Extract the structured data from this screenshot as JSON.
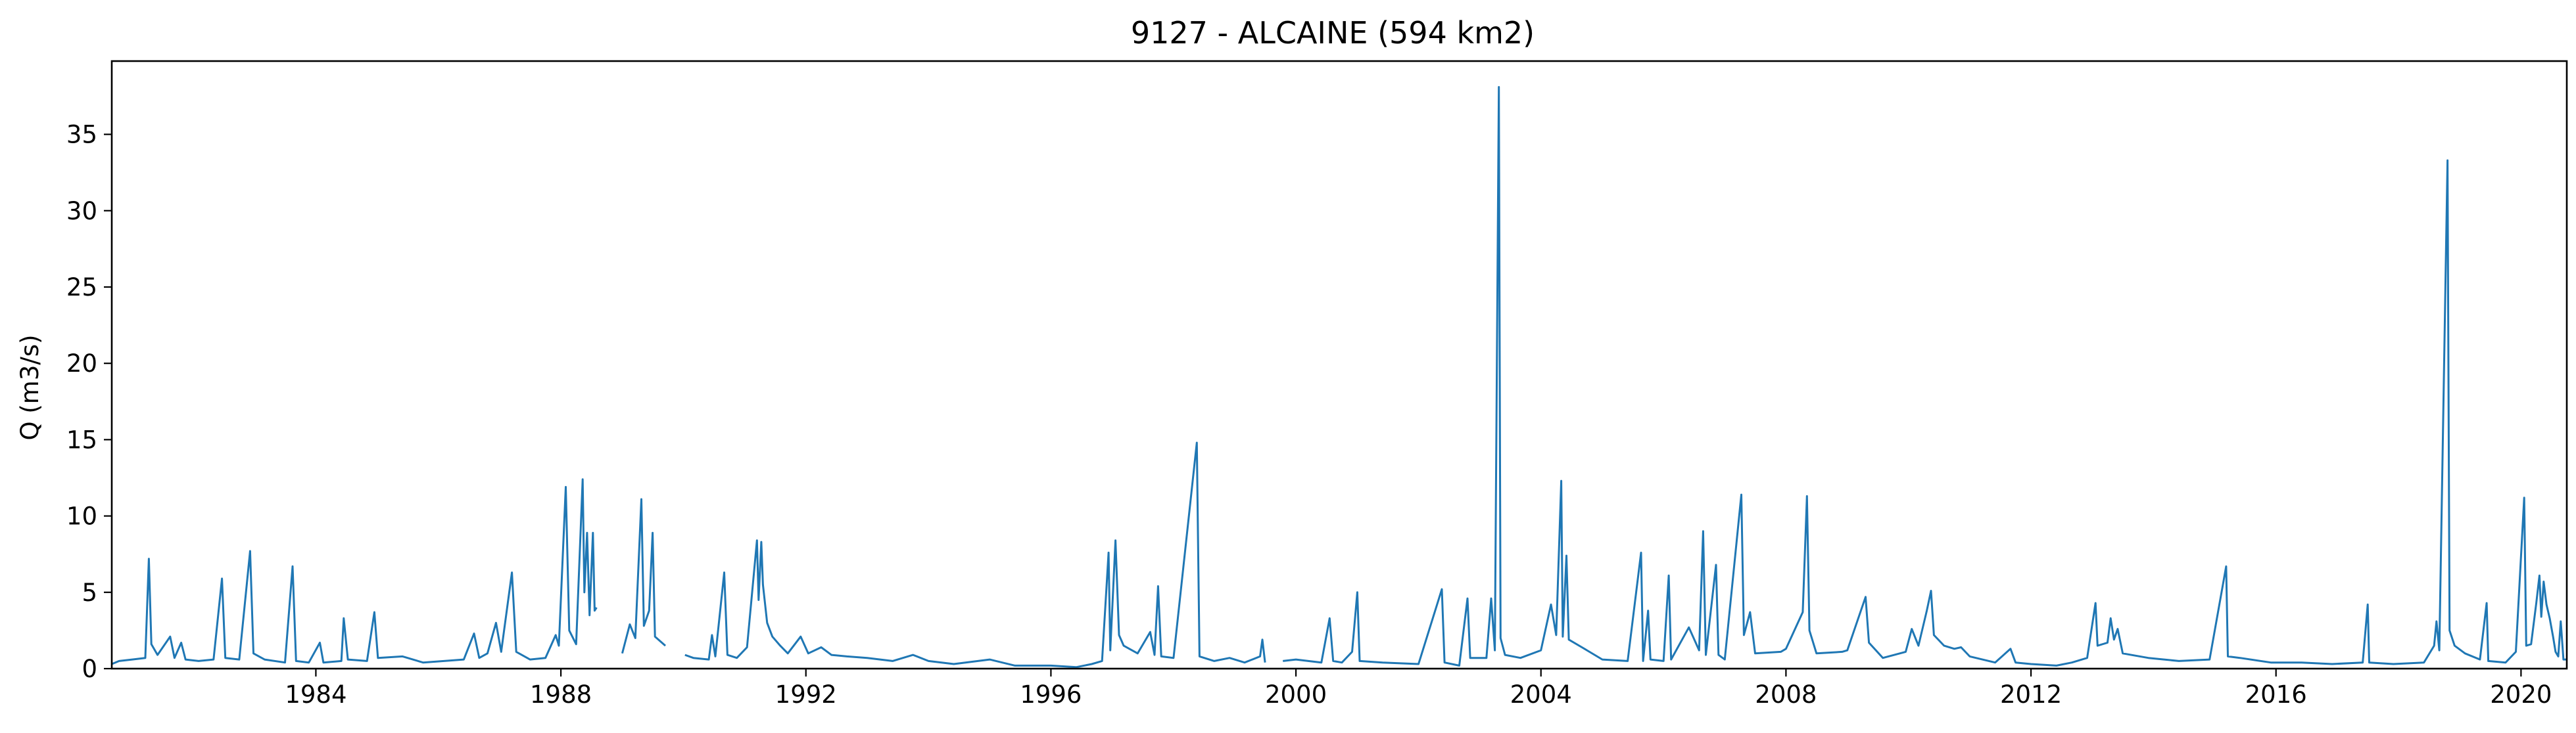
{
  "chart_data": {
    "type": "line",
    "title": "9127 - ALCAINE (594 km2)",
    "xlabel": "",
    "ylabel": "Q (m3/s)",
    "x_range": [
      "1980-09-01",
      "2020-09-30"
    ],
    "ylim": [
      0,
      39.8
    ],
    "x_ticks": [
      "1984",
      "1988",
      "1992",
      "1996",
      "2000",
      "2004",
      "2008",
      "2012",
      "2016",
      "2020"
    ],
    "y_ticks": [
      "0",
      "5",
      "10",
      "15",
      "20",
      "25",
      "30",
      "35"
    ],
    "grid": false,
    "legend": "none",
    "color": "#1f77b4",
    "series": [
      {
        "points": [
          [
            "1980-09-01",
            0.3
          ],
          [
            "1980-10-15",
            0.5
          ],
          [
            "1981-01-01",
            0.6
          ],
          [
            "1981-03-20",
            0.7
          ],
          [
            "1981-04-10",
            7.2
          ],
          [
            "1981-04-25",
            1.6
          ],
          [
            "1981-06-01",
            0.9
          ],
          [
            "1981-08-15",
            2.1
          ],
          [
            "1981-09-10",
            0.7
          ],
          [
            "1981-10-20",
            1.7
          ],
          [
            "1981-11-15",
            0.6
          ],
          [
            "1982-02-01",
            0.5
          ],
          [
            "1982-05-01",
            0.6
          ],
          [
            "1982-06-20",
            5.9
          ],
          [
            "1982-07-10",
            0.7
          ],
          [
            "1982-10-01",
            0.6
          ],
          [
            "1982-12-05",
            7.7
          ],
          [
            "1982-12-25",
            1.0
          ],
          [
            "1983-03-01",
            0.6
          ],
          [
            "1983-07-01",
            0.4
          ],
          [
            "1983-08-15",
            6.7
          ],
          [
            "1983-09-05",
            0.5
          ],
          [
            "1983-11-20",
            0.4
          ],
          [
            "1984-01-25",
            1.7
          ],
          [
            "1984-02-15",
            0.4
          ],
          [
            "1984-06-01",
            0.5
          ],
          [
            "1984-06-15",
            3.3
          ],
          [
            "1984-07-10",
            0.6
          ],
          [
            "1984-11-01",
            0.5
          ],
          [
            "1984-12-15",
            3.7
          ],
          [
            "1985-01-05",
            0.7
          ],
          [
            "1985-06-01",
            0.8
          ],
          [
            "1985-10-01",
            0.4
          ],
          [
            "1986-06-01",
            0.6
          ],
          [
            "1986-08-01",
            2.3
          ],
          [
            "1986-09-01",
            0.7
          ],
          [
            "1986-10-20",
            1.0
          ],
          [
            "1986-12-10",
            3.0
          ],
          [
            "1987-01-10",
            1.1
          ],
          [
            "1987-03-15",
            6.3
          ],
          [
            "1987-04-10",
            1.1
          ],
          [
            "1987-07-01",
            0.6
          ],
          [
            "1987-10-01",
            0.7
          ],
          [
            "1987-12-01",
            2.2
          ],
          [
            "1987-12-20",
            1.5
          ],
          [
            "1988-01-30",
            11.9
          ],
          [
            "1988-02-20",
            2.5
          ],
          [
            "1988-04-01",
            1.6
          ],
          [
            "1988-05-10",
            12.4
          ],
          [
            "1988-05-20",
            5.0
          ],
          [
            "1988-06-05",
            8.9
          ],
          [
            "1988-06-20",
            3.5
          ],
          [
            "1988-07-10",
            8.9
          ],
          [
            "1988-07-20",
            3.8
          ],
          [
            "1988-08-01",
            4.0
          ],
          [
            "1988-09-01",
            null
          ],
          [
            "1989-01-01",
            1.0
          ],
          [
            "1989-02-15",
            2.9
          ],
          [
            "1989-03-20",
            2.0
          ],
          [
            "1989-04-25",
            11.1
          ],
          [
            "1989-05-10",
            2.8
          ],
          [
            "1989-06-10",
            3.8
          ],
          [
            "1989-07-01",
            8.9
          ],
          [
            "1989-07-15",
            2.1
          ],
          [
            "1989-09-15",
            1.5
          ],
          [
            "1989-10-01",
            null
          ],
          [
            "1990-01-10",
            0.9
          ],
          [
            "1990-03-01",
            0.7
          ],
          [
            "1990-06-01",
            0.6
          ],
          [
            "1990-06-20",
            2.2
          ],
          [
            "1990-07-10",
            0.8
          ],
          [
            "1990-09-01",
            6.3
          ],
          [
            "1990-09-20",
            0.9
          ],
          [
            "1990-11-15",
            0.7
          ],
          [
            "1991-01-15",
            1.4
          ],
          [
            "1991-03-15",
            8.4
          ],
          [
            "1991-03-25",
            4.5
          ],
          [
            "1991-04-10",
            8.3
          ],
          [
            "1991-04-20",
            5.5
          ],
          [
            "1991-05-15",
            3.0
          ],
          [
            "1991-06-15",
            2.1
          ],
          [
            "1991-08-01",
            1.5
          ],
          [
            "1991-09-15",
            1.0
          ],
          [
            "1991-12-01",
            2.1
          ],
          [
            "1992-01-15",
            1.0
          ],
          [
            "1992-04-01",
            1.4
          ],
          [
            "1992-06-01",
            0.9
          ],
          [
            "1992-09-01",
            0.8
          ],
          [
            "1993-01-01",
            0.7
          ],
          [
            "1993-06-01",
            0.5
          ],
          [
            "1993-10-01",
            0.9
          ],
          [
            "1994-01-01",
            0.5
          ],
          [
            "1994-06-01",
            0.3
          ],
          [
            "1995-01-01",
            0.6
          ],
          [
            "1995-06-01",
            0.2
          ],
          [
            "1996-01-01",
            0.2
          ],
          [
            "1996-06-01",
            0.1
          ],
          [
            "1996-09-01",
            0.3
          ],
          [
            "1996-11-01",
            0.5
          ],
          [
            "1996-12-10",
            7.6
          ],
          [
            "1996-12-20",
            1.2
          ],
          [
            "1997-01-20",
            8.4
          ],
          [
            "1997-02-10",
            2.2
          ],
          [
            "1997-03-10",
            1.5
          ],
          [
            "1997-06-01",
            1.0
          ],
          [
            "1997-08-15",
            2.4
          ],
          [
            "1997-09-10",
            0.9
          ],
          [
            "1997-10-01",
            5.4
          ],
          [
            "1997-10-20",
            0.8
          ],
          [
            "1998-01-01",
            0.7
          ],
          [
            "1998-05-20",
            14.8
          ],
          [
            "1998-06-05",
            0.8
          ],
          [
            "1998-09-01",
            0.5
          ],
          [
            "1998-12-01",
            0.7
          ],
          [
            "1999-03-01",
            0.4
          ],
          [
            "1999-06-01",
            0.8
          ],
          [
            "1999-06-15",
            1.9
          ],
          [
            "1999-07-01",
            0.4
          ],
          [
            "1999-09-01",
            null
          ],
          [
            "1999-10-15",
            0.5
          ],
          [
            "2000-01-01",
            0.6
          ],
          [
            "2000-06-01",
            0.4
          ],
          [
            "2000-07-20",
            3.3
          ],
          [
            "2000-08-10",
            0.5
          ],
          [
            "2000-10-01",
            0.4
          ],
          [
            "2000-12-01",
            1.1
          ],
          [
            "2001-01-01",
            5.0
          ],
          [
            "2001-01-15",
            0.5
          ],
          [
            "2001-06-01",
            0.4
          ],
          [
            "2002-01-01",
            0.3
          ],
          [
            "2002-05-20",
            5.2
          ],
          [
            "2002-06-05",
            0.4
          ],
          [
            "2002-09-01",
            0.2
          ],
          [
            "2002-10-20",
            4.6
          ],
          [
            "2002-11-05",
            0.7
          ],
          [
            "2003-02-10",
            0.7
          ],
          [
            "2003-03-10",
            4.6
          ],
          [
            "2003-04-01",
            1.2
          ],
          [
            "2003-04-25",
            38.1
          ],
          [
            "2003-05-05",
            2.0
          ],
          [
            "2003-06-01",
            0.9
          ],
          [
            "2003-09-01",
            0.7
          ],
          [
            "2004-01-01",
            1.2
          ],
          [
            "2004-03-01",
            4.2
          ],
          [
            "2004-04-01",
            2.2
          ],
          [
            "2004-05-01",
            12.3
          ],
          [
            "2004-05-10",
            2.1
          ],
          [
            "2004-06-01",
            7.4
          ],
          [
            "2004-06-15",
            1.9
          ],
          [
            "2004-09-01",
            1.4
          ],
          [
            "2005-01-01",
            0.6
          ],
          [
            "2005-06-01",
            0.5
          ],
          [
            "2005-08-20",
            7.6
          ],
          [
            "2005-09-01",
            0.5
          ],
          [
            "2005-10-01",
            3.8
          ],
          [
            "2005-10-15",
            0.6
          ],
          [
            "2006-01-01",
            0.5
          ],
          [
            "2006-02-01",
            6.1
          ],
          [
            "2006-02-15",
            0.6
          ],
          [
            "2006-06-01",
            2.7
          ],
          [
            "2006-08-01",
            1.2
          ],
          [
            "2006-08-25",
            9.0
          ],
          [
            "2006-09-10",
            0.9
          ],
          [
            "2006-11-10",
            6.8
          ],
          [
            "2006-11-25",
            0.9
          ],
          [
            "2007-01-01",
            0.6
          ],
          [
            "2007-04-10",
            11.4
          ],
          [
            "2007-04-25",
            2.2
          ],
          [
            "2007-06-01",
            3.7
          ],
          [
            "2007-07-01",
            1.0
          ],
          [
            "2007-12-01",
            1.1
          ],
          [
            "2008-01-01",
            1.3
          ],
          [
            "2008-04-10",
            3.7
          ],
          [
            "2008-05-05",
            11.3
          ],
          [
            "2008-05-20",
            2.5
          ],
          [
            "2008-07-01",
            1.0
          ],
          [
            "2008-12-01",
            1.1
          ],
          [
            "2009-01-01",
            1.2
          ],
          [
            "2009-04-20",
            4.7
          ],
          [
            "2009-05-10",
            1.7
          ],
          [
            "2009-08-01",
            0.7
          ],
          [
            "2009-12-15",
            1.1
          ],
          [
            "2010-01-20",
            2.6
          ],
          [
            "2010-03-01",
            1.5
          ],
          [
            "2010-04-20",
            3.8
          ],
          [
            "2010-05-15",
            5.1
          ],
          [
            "2010-06-01",
            2.2
          ],
          [
            "2010-08-01",
            1.5
          ],
          [
            "2010-10-01",
            1.3
          ],
          [
            "2010-11-10",
            1.4
          ],
          [
            "2011-01-01",
            0.8
          ],
          [
            "2011-06-01",
            0.4
          ],
          [
            "2011-09-01",
            1.3
          ],
          [
            "2011-10-01",
            0.4
          ],
          [
            "2012-01-01",
            0.3
          ],
          [
            "2012-06-01",
            0.2
          ],
          [
            "2012-09-01",
            0.4
          ],
          [
            "2012-12-01",
            0.7
          ],
          [
            "2013-01-20",
            4.3
          ],
          [
            "2013-02-01",
            1.5
          ],
          [
            "2013-04-01",
            1.7
          ],
          [
            "2013-04-20",
            3.3
          ],
          [
            "2013-05-10",
            1.9
          ],
          [
            "2013-06-01",
            2.6
          ],
          [
            "2013-07-01",
            1.0
          ],
          [
            "2013-12-01",
            0.7
          ],
          [
            "2014-06-01",
            0.5
          ],
          [
            "2014-12-01",
            0.6
          ],
          [
            "2015-03-10",
            6.7
          ],
          [
            "2015-03-20",
            0.8
          ],
          [
            "2015-06-01",
            0.7
          ],
          [
            "2015-12-01",
            0.4
          ],
          [
            "2016-06-01",
            0.4
          ],
          [
            "2016-12-01",
            0.3
          ],
          [
            "2017-06-01",
            0.4
          ],
          [
            "2017-07-01",
            4.2
          ],
          [
            "2017-07-10",
            0.4
          ],
          [
            "2017-12-01",
            0.3
          ],
          [
            "2018-06-01",
            0.4
          ],
          [
            "2018-08-01",
            1.5
          ],
          [
            "2018-08-15",
            3.1
          ],
          [
            "2018-09-01",
            1.2
          ],
          [
            "2018-10-20",
            33.3
          ],
          [
            "2018-11-01",
            2.5
          ],
          [
            "2018-12-01",
            1.5
          ],
          [
            "2019-02-01",
            1.0
          ],
          [
            "2019-05-01",
            0.6
          ],
          [
            "2019-06-10",
            4.3
          ],
          [
            "2019-06-20",
            0.5
          ],
          [
            "2019-10-01",
            0.4
          ],
          [
            "2019-12-01",
            1.1
          ],
          [
            "2020-01-20",
            11.2
          ],
          [
            "2020-02-01",
            1.5
          ],
          [
            "2020-03-01",
            1.6
          ],
          [
            "2020-04-01",
            4.3
          ],
          [
            "2020-04-20",
            6.1
          ],
          [
            "2020-05-01",
            3.4
          ],
          [
            "2020-05-15",
            5.7
          ],
          [
            "2020-06-01",
            4.2
          ],
          [
            "2020-06-20",
            3.3
          ],
          [
            "2020-07-10",
            2.1
          ],
          [
            "2020-07-25",
            1.1
          ],
          [
            "2020-08-10",
            0.8
          ],
          [
            "2020-08-25",
            3.1
          ],
          [
            "2020-09-10",
            0.6
          ],
          [
            "2020-09-30",
            0.6
          ]
        ]
      }
    ]
  }
}
